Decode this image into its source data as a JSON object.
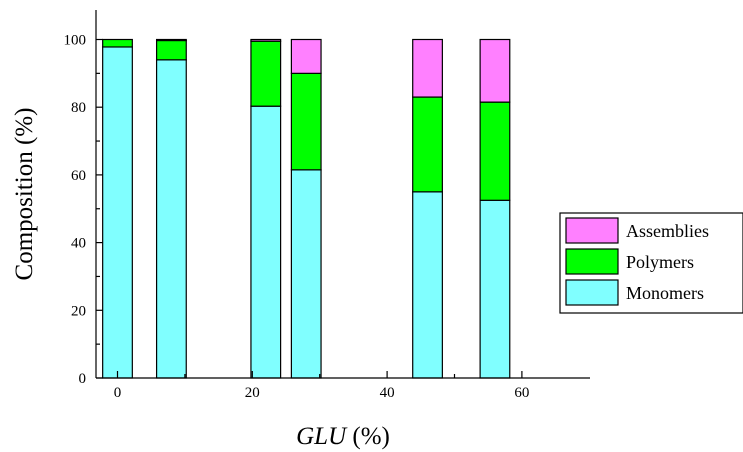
{
  "chart_data": {
    "type": "bar",
    "stacked": true,
    "xlabel_italic": "GLU",
    "xlabel_unit": " (%)",
    "ylabel": "Composition (%)",
    "x": [
      0,
      8,
      22,
      28,
      46,
      56
    ],
    "xlim": [
      -4,
      70
    ],
    "ylim": [
      0,
      100
    ],
    "bar_width": 4.4,
    "xticks": [
      0,
      20,
      40,
      60
    ],
    "yticks": [
      0,
      20,
      40,
      60,
      80,
      100
    ],
    "xtick_labels": [
      "0",
      "20",
      "40",
      "60"
    ],
    "ytick_labels": [
      "0",
      "20",
      "40",
      "60",
      "80",
      "100"
    ],
    "series": [
      {
        "name": "Monomers",
        "color": "#80ffff",
        "values": [
          97.8,
          94.0,
          80.3,
          61.5,
          55.0,
          52.5
        ]
      },
      {
        "name": "Polymers",
        "color": "#00ff00",
        "values": [
          2.2,
          5.7,
          19.2,
          28.5,
          28.0,
          29.0
        ]
      },
      {
        "name": "Assemblies",
        "color": "#ff80ff",
        "values": [
          0.0,
          0.3,
          0.5,
          10.0,
          17.0,
          18.5
        ]
      }
    ],
    "legend_order": [
      "Assemblies",
      "Polymers",
      "Monomers"
    ],
    "legend_position": "right",
    "grid": false
  }
}
